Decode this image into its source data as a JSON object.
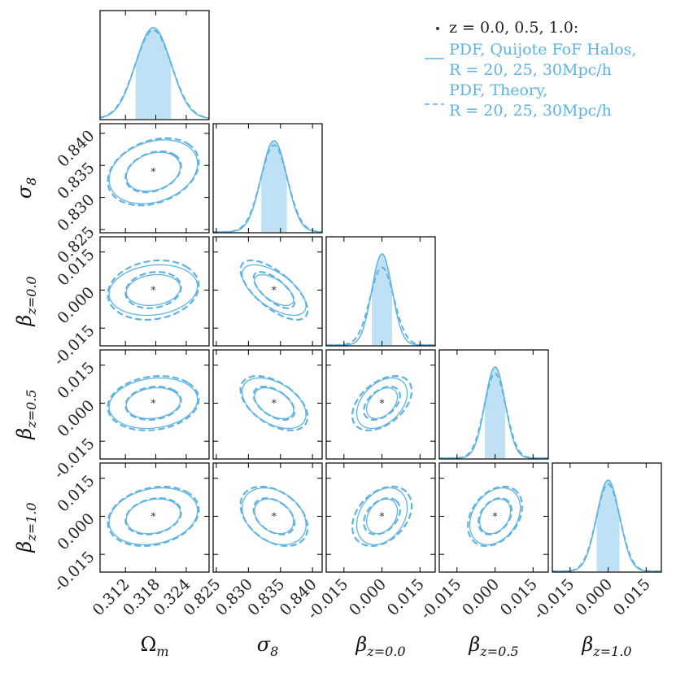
{
  "chart_data": {
    "type": "corner",
    "parameters": [
      {
        "id": "Om",
        "label": "Ω",
        "sub": "m",
        "fiducial": 0.3175,
        "range": [
          0.307,
          0.3285
        ],
        "ticks": [
          {
            "v": 0.312,
            "label": "0.312"
          },
          {
            "v": 0.318,
            "label": "0.318"
          },
          {
            "v": 0.324,
            "label": "0.324"
          }
        ]
      },
      {
        "id": "s8",
        "label": "σ",
        "sub": "8",
        "fiducial": 0.834,
        "range": [
          0.8245,
          0.8415
        ],
        "ticks": [
          {
            "v": 0.825,
            "label": "0.825"
          },
          {
            "v": 0.83,
            "label": "0.830"
          },
          {
            "v": 0.835,
            "label": "0.835"
          },
          {
            "v": 0.84,
            "label": "0.840"
          }
        ]
      },
      {
        "id": "b0",
        "label": "β",
        "sub": "z=0.0",
        "fiducial": 0.0,
        "range": [
          -0.022,
          0.021
        ],
        "ticks": [
          {
            "v": -0.015,
            "label": "-0.015"
          },
          {
            "v": 0.0,
            "label": "0.000"
          },
          {
            "v": 0.015,
            "label": "0.015"
          }
        ]
      },
      {
        "id": "b5",
        "label": "β",
        "sub": "z=0.5",
        "fiducial": 0.0,
        "range": [
          -0.022,
          0.021
        ],
        "ticks": [
          {
            "v": -0.015,
            "label": "-0.015"
          },
          {
            "v": 0.0,
            "label": "0.000"
          },
          {
            "v": 0.015,
            "label": "0.015"
          }
        ]
      },
      {
        "id": "b10",
        "label": "β",
        "sub": "z=1.0",
        "fiducial": 0.0,
        "range": [
          -0.022,
          0.021
        ],
        "ticks": [
          {
            "v": -0.015,
            "label": "-0.015"
          },
          {
            "v": 0.0,
            "label": "0.000"
          },
          {
            "v": 0.015,
            "label": "0.015"
          }
        ]
      }
    ],
    "sigmas": [
      {
        "sim": 0.0035,
        "theory": 0.0036
      },
      {
        "sim": 0.002,
        "theory": 0.0021
      },
      {
        "sim": 0.004,
        "theory": 0.0047
      },
      {
        "sim": 0.004,
        "theory": 0.0043
      },
      {
        "sim": 0.0045,
        "theory": 0.0047
      }
    ],
    "correlations": {
      "1,0": {
        "sim": 0.25,
        "theory": 0.28
      },
      "2,0": {
        "sim": 0.15,
        "theory": 0.15
      },
      "2,1": {
        "sim": -0.62,
        "theory": -0.68
      },
      "3,0": {
        "sim": 0.15,
        "theory": 0.15
      },
      "3,1": {
        "sim": -0.45,
        "theory": -0.5
      },
      "3,2": {
        "sim": 0.4,
        "theory": 0.45
      },
      "4,0": {
        "sim": 0.2,
        "theory": 0.22
      },
      "4,1": {
        "sim": -0.3,
        "theory": -0.38
      },
      "4,2": {
        "sim": 0.3,
        "theory": 0.35
      },
      "4,3": {
        "sim": 0.3,
        "theory": 0.33
      }
    },
    "series": [
      {
        "name": "PDF, Quijote FoF Halos",
        "line2": "R = 20, 25, 30Mpc/h",
        "style": "solid"
      },
      {
        "name": "PDF, Theory",
        "line2": "R = 20, 25, 30Mpc/h",
        "style": "dashed"
      }
    ],
    "legend": {
      "marker_label": "z = 0.0, 0.5, 1.0:",
      "entry1_line1": "PDF, Quijote FoF Halos,",
      "entry1_line2": "R = 20, 25, 30Mpc/h",
      "entry2_line1": "PDF, Theory,",
      "entry2_line2": "R = 20, 25, 30Mpc/h",
      "placement": "top-right"
    },
    "contour_levels": [
      "1σ",
      "2σ"
    ]
  },
  "colors": {
    "series": "#5fb3e3",
    "fill": "#bfe1f5",
    "marker": "#333333",
    "frame": "#000000"
  }
}
